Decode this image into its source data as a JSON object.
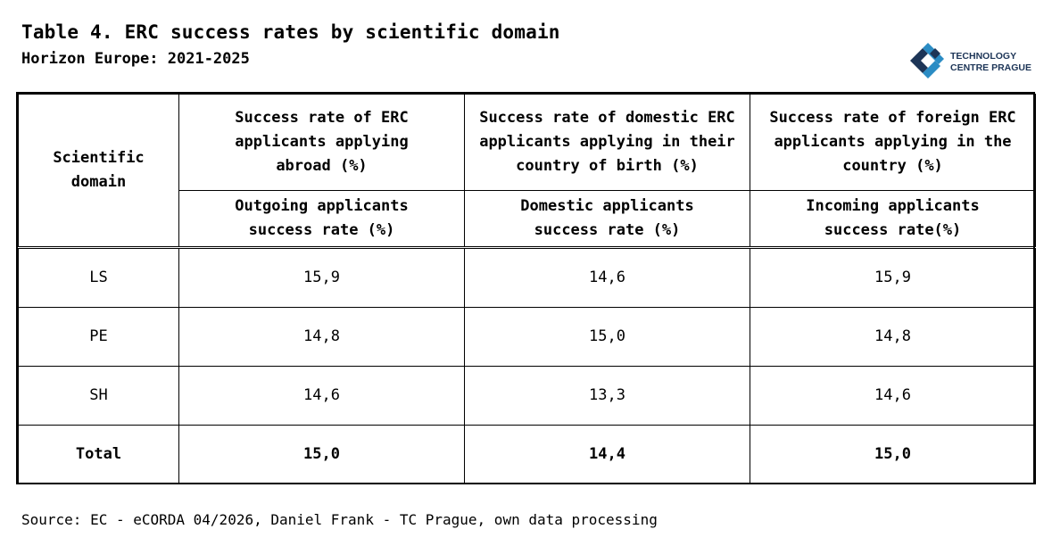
{
  "header": {
    "title": "Table 4. ERC success rates by scientific domain",
    "subtitle": "Horizon Europe: 2021-2025"
  },
  "logo": {
    "line1": "TECHNOLOGY",
    "line2": "CENTRE PRAGUE",
    "icon": "tc-prague-logo-icon",
    "colors": {
      "dark": "#1d3557",
      "light": "#2b8cc4"
    }
  },
  "table": {
    "domain_header": "Scientific domain",
    "columns": [
      {
        "header": "Success rate of ERC applicants applying abroad (%)",
        "subheader": "Outgoing applicants success rate (%)"
      },
      {
        "header": "Success rate of domestic ERC applicants applying in their country of birth (%)",
        "subheader": "Domestic applicants success rate (%)"
      },
      {
        "header": "Success rate of foreign ERC applicants applying in the country (%)",
        "subheader": "Incoming applicants success rate(%)"
      }
    ],
    "rows": [
      {
        "domain": "LS",
        "values": [
          "15,9",
          "14,6",
          "15,9"
        ]
      },
      {
        "domain": "PE",
        "values": [
          "14,8",
          "15,0",
          "14,8"
        ]
      },
      {
        "domain": "SH",
        "values": [
          "14,6",
          "13,3",
          "14,6"
        ]
      },
      {
        "domain": "Total",
        "values": [
          "15,0",
          "14,4",
          "15,0"
        ]
      }
    ]
  },
  "footer": {
    "source": "Source: EC - eCORDA 04/2026, Daniel Frank - TC Prague, own data processing"
  }
}
